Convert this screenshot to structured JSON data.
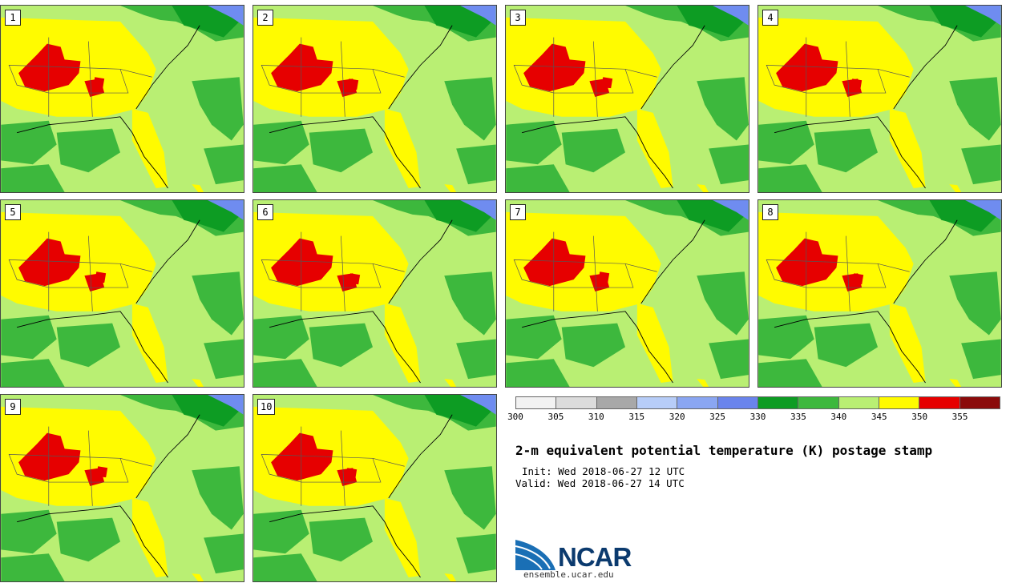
{
  "panels": [
    {
      "label": "1"
    },
    {
      "label": "2"
    },
    {
      "label": "3"
    },
    {
      "label": "4"
    },
    {
      "label": "5"
    },
    {
      "label": "6"
    },
    {
      "label": "7"
    },
    {
      "label": "8"
    },
    {
      "label": "9"
    },
    {
      "label": "10"
    }
  ],
  "map_colors": {
    "background_light_green": "#b9ef73",
    "mid_green": "#3db83d",
    "dark_green": "#0d9c23",
    "yellow": "#fffb00",
    "red": "#e60000",
    "blue": "#6f8cf0",
    "border_lines": "#555555"
  },
  "colorbar": {
    "colors": [
      "#f2f2f2",
      "#dcdcdc",
      "#a8a8a8",
      "#b7cdf8",
      "#8aa6f2",
      "#6a84ec",
      "#0d9c23",
      "#3db83d",
      "#b9ef73",
      "#fffb00",
      "#e60000",
      "#8b0b0b"
    ],
    "ticks": [
      "300",
      "305",
      "310",
      "315",
      "320",
      "325",
      "330",
      "335",
      "340",
      "345",
      "350",
      "355"
    ]
  },
  "title": "2-m equivalent potential temperature (K) postage stamp",
  "init": "Init: Wed 2018-06-27 12 UTC",
  "valid": "Valid: Wed 2018-06-27 14 UTC",
  "logo": {
    "text": "NCAR",
    "url": "ensemble.ucar.edu",
    "logo_blue": "#1a6fb5"
  }
}
